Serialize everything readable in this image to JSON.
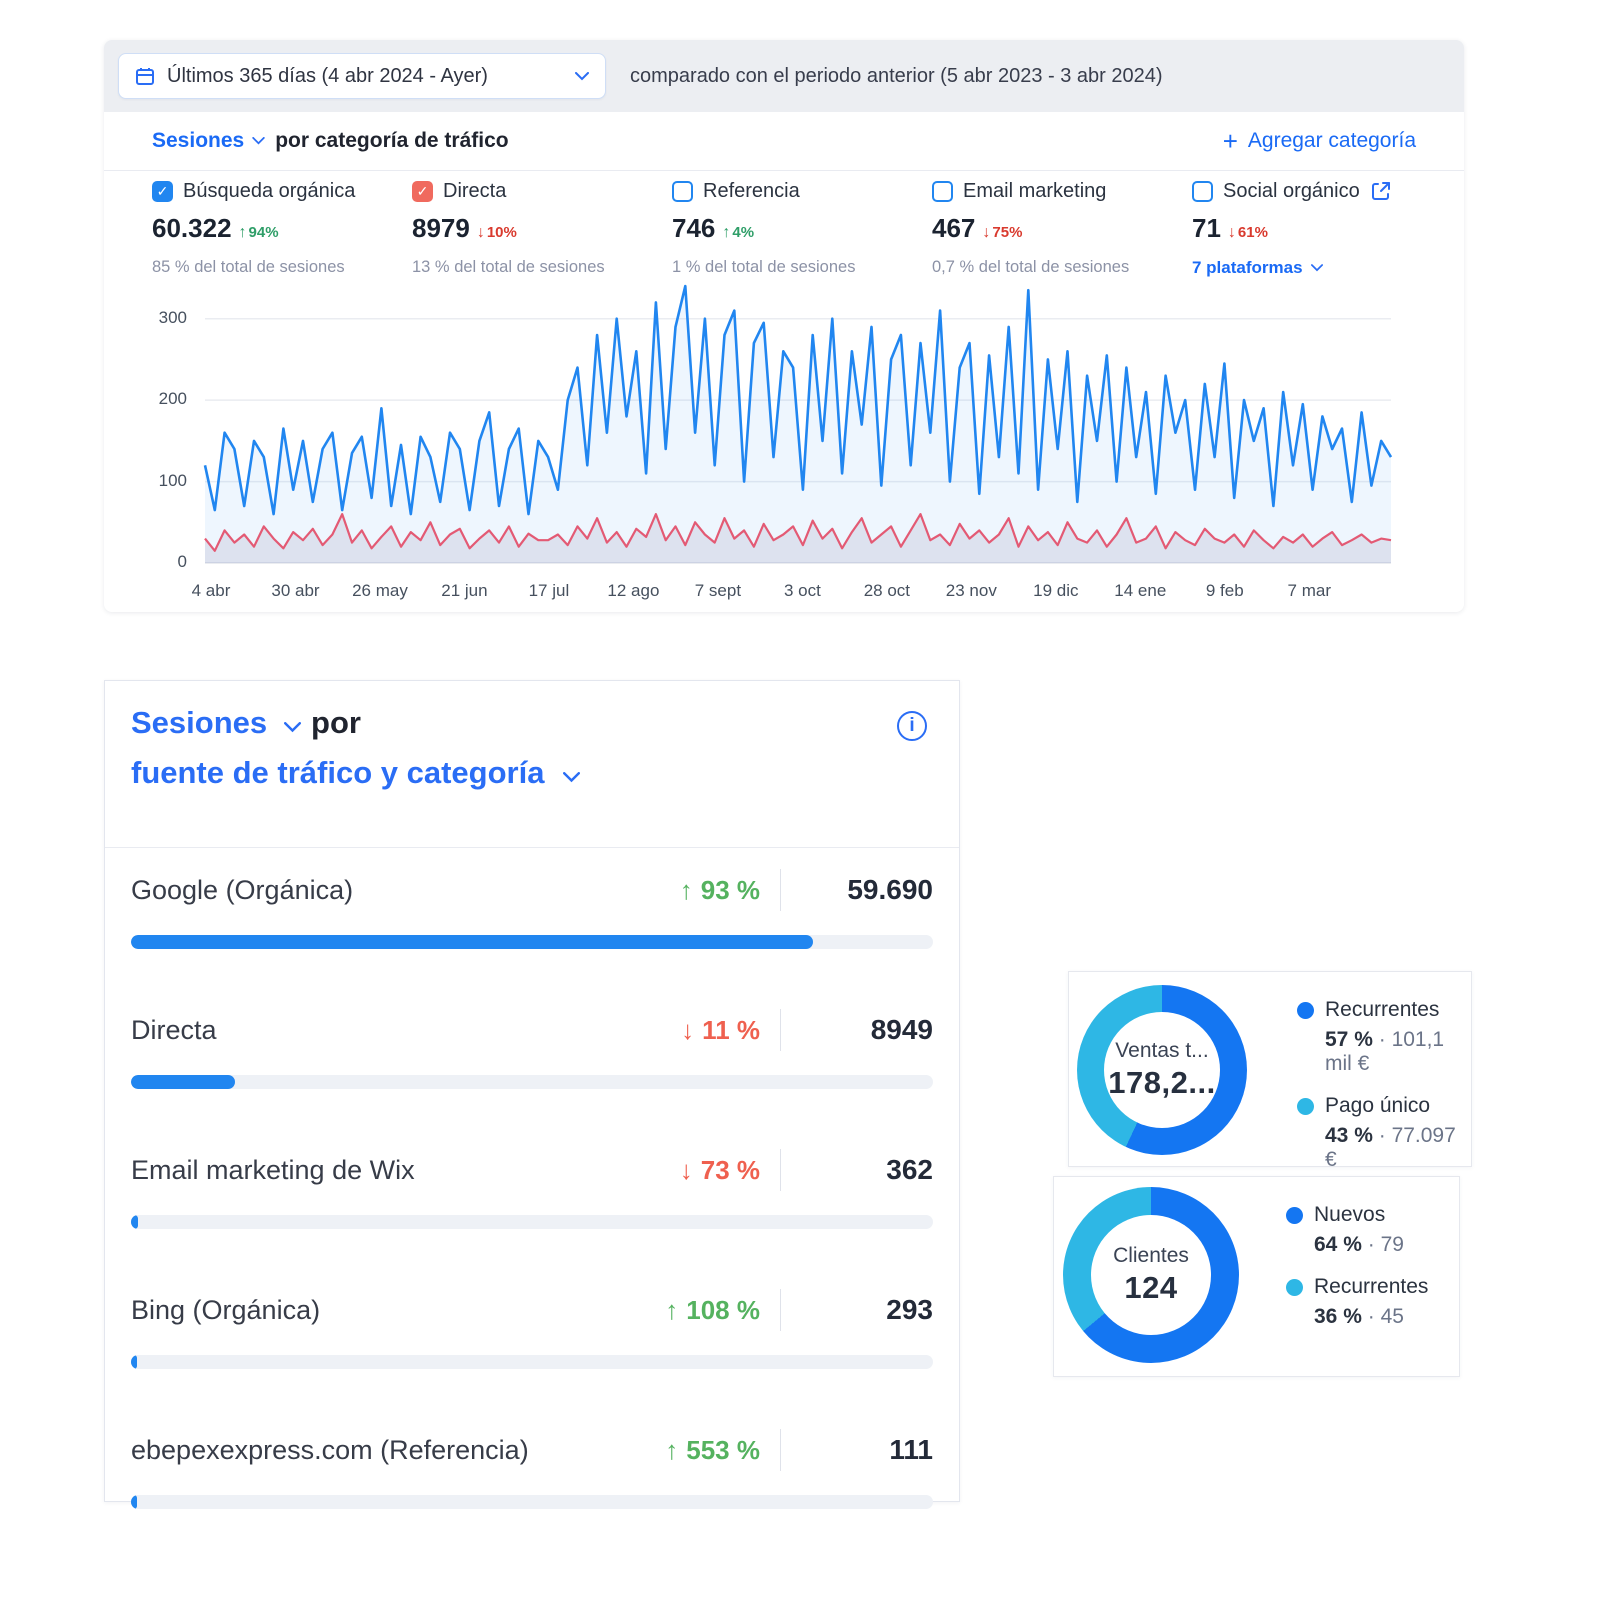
{
  "colors": {
    "link_blue": "#1a6af5",
    "chart_blue": "#2186f0",
    "chart_red": "#f4566a",
    "green_top": "#2f9e68",
    "red_top": "#d93a2e",
    "green_list": "#55b25f",
    "red_list": "#ef604f",
    "donut_dark": "#1476f2",
    "donut_cyan": "#2eb7e5",
    "checkbox_blue": "#2186f0",
    "checkbox_red": "#f06a5e"
  },
  "header": {
    "date_range_label": "Últimos 365 días (4 abr 2024 - Ayer)",
    "compare_label": "comparado con el periodo anterior (5 abr 2023 - 3 abr 2024)"
  },
  "sessions_panel": {
    "metric_label": "Sesiones",
    "title_rest": "por categoría de tráfico",
    "add_category_label": "Agregar categoría",
    "plus_glyph": "+",
    "categories": [
      {
        "label": "Búsqueda orgánica",
        "value": "60.322",
        "change": "94%",
        "dir": "up",
        "sub": "85 % del total de sesiones",
        "checked": true,
        "check_color": "#2186f0"
      },
      {
        "label": "Directa",
        "value": "8979",
        "change": "10%",
        "dir": "down",
        "sub": "13 % del total de sesiones",
        "checked": true,
        "check_color": "#f06a5e"
      },
      {
        "label": "Referencia",
        "value": "746",
        "change": "4%",
        "dir": "up",
        "sub": "1 % del total de sesiones",
        "checked": false
      },
      {
        "label": "Email marketing",
        "value": "467",
        "change": "75%",
        "dir": "down",
        "sub": "0,7 % del total de sesiones",
        "checked": false
      },
      {
        "label": "Social orgánico",
        "value": "71",
        "change": "61%",
        "dir": "down",
        "sub": "7 plataformas",
        "sub_is_link": true,
        "checked": false
      }
    ]
  },
  "chart_data": {
    "type": "line",
    "title": "Sesiones por categoría de tráfico",
    "x_ticks": [
      "4 abr",
      "30 abr",
      "26 may",
      "21 jun",
      "17 jul",
      "12 ago",
      "7 sept",
      "3 oct",
      "28 oct",
      "23 nov",
      "19 dic",
      "14 ene",
      "9 feb",
      "7 mar"
    ],
    "x_tick_interval_days": 26,
    "x_total_days": 365,
    "y_ticks": [
      0,
      100,
      200,
      300
    ],
    "ylim": [
      0,
      350
    ],
    "grid": true,
    "series": [
      {
        "name": "Búsqueda orgánica",
        "color": "#2186f0",
        "fill": "rgba(33,134,240,0.08)",
        "values": [
          120,
          65,
          160,
          140,
          70,
          150,
          130,
          60,
          165,
          90,
          150,
          75,
          140,
          160,
          65,
          135,
          155,
          80,
          190,
          70,
          145,
          60,
          155,
          130,
          75,
          160,
          140,
          65,
          150,
          185,
          70,
          140,
          165,
          60,
          150,
          130,
          90,
          200,
          240,
          120,
          280,
          160,
          300,
          180,
          260,
          110,
          320,
          140,
          290,
          340,
          160,
          300,
          120,
          280,
          310,
          100,
          270,
          295,
          130,
          260,
          240,
          90,
          280,
          150,
          300,
          110,
          260,
          170,
          290,
          95,
          250,
          280,
          120,
          270,
          160,
          310,
          100,
          240,
          270,
          85,
          255,
          130,
          290,
          110,
          335,
          90,
          250,
          140,
          260,
          75,
          230,
          150,
          255,
          100,
          240,
          130,
          210,
          85,
          230,
          160,
          200,
          90,
          220,
          130,
          245,
          80,
          200,
          150,
          190,
          70,
          210,
          120,
          195,
          90,
          180,
          140,
          165,
          75,
          185,
          95,
          150,
          130
        ]
      },
      {
        "name": "Directa",
        "color": "#f4566a",
        "fill": "rgba(104,82,124,0.12)",
        "values": [
          30,
          15,
          40,
          25,
          35,
          20,
          45,
          30,
          18,
          38,
          28,
          42,
          22,
          35,
          60,
          25,
          40,
          18,
          32,
          45,
          20,
          38,
          28,
          50,
          22,
          35,
          42,
          18,
          30,
          40,
          25,
          45,
          20,
          36,
          28,
          28,
          35,
          22,
          45,
          30,
          55,
          25,
          38,
          20,
          42,
          32,
          60,
          28,
          45,
          22,
          50,
          35,
          25,
          55,
          30,
          40,
          20,
          48,
          28,
          35,
          45,
          22,
          52,
          30,
          42,
          18,
          38,
          55,
          25,
          35,
          45,
          20,
          40,
          60,
          28,
          35,
          22,
          48,
          30,
          40,
          25,
          35,
          55,
          20,
          45,
          28,
          38,
          22,
          50,
          30,
          25,
          40,
          20,
          35,
          55,
          25,
          30,
          45,
          18,
          38,
          28,
          22,
          42,
          30,
          25,
          35,
          20,
          40,
          28,
          18,
          32,
          25,
          35,
          20,
          30,
          38,
          22,
          28,
          35,
          25,
          30,
          28
        ]
      }
    ]
  },
  "sources_panel": {
    "metric_label": "Sesiones",
    "by_label": "por",
    "dimension_label": "fuente de tráfico y categoría",
    "rows": [
      {
        "label": "Google (Orgánica)",
        "change": "93 %",
        "dir": "up",
        "value": "59.690",
        "bar_pct": 85
      },
      {
        "label": "Directa",
        "change": "11 %",
        "dir": "down",
        "value": "8949",
        "bar_pct": 13
      },
      {
        "label": "Email marketing de Wix",
        "change": "73 %",
        "dir": "down",
        "value": "362",
        "bar_pct": 0.9
      },
      {
        "label": "Bing (Orgánica)",
        "change": "108 %",
        "dir": "up",
        "value": "293",
        "bar_pct": 0.8
      },
      {
        "label": "ebepexexpress.com (Referencia)",
        "change": "553 %",
        "dir": "up",
        "value": "111",
        "bar_pct": 0.6
      }
    ]
  },
  "donut_cards": [
    {
      "center_title": "Ventas t...",
      "center_value": "178,2...",
      "chart_data": {
        "type": "pie",
        "categories": [
          "Recurrentes",
          "Pago único"
        ],
        "values": [
          57,
          43
        ]
      },
      "segments": [
        {
          "label": "Recurrentes",
          "pct_label": "57 %",
          "sep": "·",
          "amount": "101,1 mil €",
          "color": "#1476f2"
        },
        {
          "label": "Pago único",
          "pct_label": "43 %",
          "sep": "·",
          "amount": "77.097 €",
          "color": "#2eb7e5"
        }
      ]
    },
    {
      "center_title": "Clientes",
      "center_value": "124",
      "chart_data": {
        "type": "pie",
        "categories": [
          "Nuevos",
          "Recurrentes"
        ],
        "values": [
          64,
          36
        ]
      },
      "segments": [
        {
          "label": "Nuevos",
          "pct_label": "64 %",
          "sep": "·",
          "amount": "79",
          "color": "#1476f2"
        },
        {
          "label": "Recurrentes",
          "pct_label": "36 %",
          "sep": "·",
          "amount": "45",
          "color": "#2eb7e5"
        }
      ]
    }
  ]
}
